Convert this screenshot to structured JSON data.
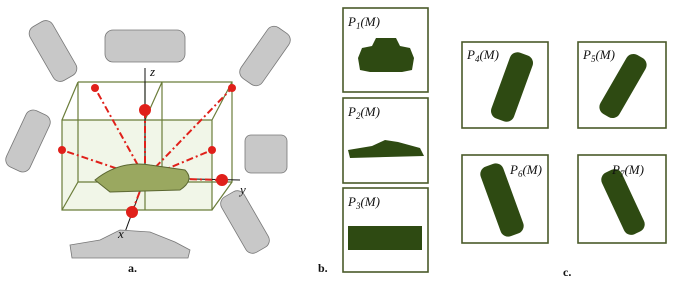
{
  "figure": {
    "panel_a": {
      "label": "a.",
      "axes": {
        "z": "z",
        "y": "y",
        "x": "x"
      }
    },
    "panel_b": {
      "label": "b.",
      "projections": [
        {
          "symbol": "P",
          "index": "1",
          "argument": "(M)"
        },
        {
          "symbol": "P",
          "index": "2",
          "argument": "(M)"
        },
        {
          "symbol": "P",
          "index": "3",
          "argument": "(M)"
        }
      ]
    },
    "panel_c": {
      "label": "c.",
      "projections": [
        {
          "symbol": "P",
          "index": "4",
          "argument": "(M)"
        },
        {
          "symbol": "P",
          "index": "5",
          "argument": "(M)"
        },
        {
          "symbol": "P",
          "index": "6",
          "argument": "(M)"
        },
        {
          "symbol": "P",
          "index": "7",
          "argument": "(M)"
        }
      ]
    }
  }
}
